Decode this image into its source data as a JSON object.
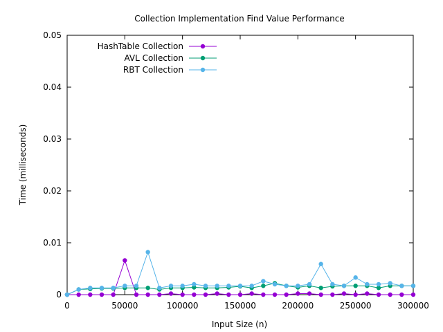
{
  "chart_data": {
    "type": "line",
    "title": "Collection Implementation Find Value Performance",
    "xlabel": "Input Size (n)",
    "ylabel": "Time (milliseconds)",
    "xlim": [
      0,
      300000
    ],
    "ylim": [
      0,
      0.05
    ],
    "x_ticks": [
      0,
      50000,
      100000,
      150000,
      200000,
      250000,
      300000
    ],
    "x_tick_labels": [
      "0",
      "50000",
      "100000",
      "150000",
      "200000",
      "250000",
      "300000"
    ],
    "y_ticks": [
      0,
      0.01,
      0.02,
      0.03,
      0.04,
      0.05
    ],
    "y_tick_labels": [
      "0",
      "0.01",
      "0.02",
      "0.03",
      "0.04",
      "0.05"
    ],
    "grid": false,
    "legend_position": "top-left",
    "x": [
      0,
      10000,
      20000,
      30000,
      40000,
      50000,
      60000,
      70000,
      80000,
      90000,
      100000,
      110000,
      120000,
      130000,
      140000,
      150000,
      160000,
      170000,
      180000,
      190000,
      200000,
      210000,
      220000,
      230000,
      240000,
      250000,
      260000,
      270000,
      280000,
      290000,
      300000
    ],
    "series": [
      {
        "name": "HashTable Collection",
        "color": "#9400d3",
        "values": [
          0,
          0,
          0,
          0,
          0,
          0.0066,
          0,
          0,
          0,
          0.0002,
          0,
          0,
          0,
          0.0002,
          0,
          0,
          0.0002,
          0,
          0,
          0,
          0.0002,
          0.0002,
          0,
          0,
          0.0002,
          0,
          0.0002,
          0,
          0,
          0,
          0
        ]
      },
      {
        "name": "AVL Collection",
        "color": "#009e73",
        "values": [
          0,
          0.001,
          0.0011,
          0.0012,
          0.0012,
          0.0013,
          0.0013,
          0.0013,
          0.001,
          0.0013,
          0.0013,
          0.0014,
          0.0013,
          0.0013,
          0.0014,
          0.0016,
          0.0013,
          0.0017,
          0.0022,
          0.0017,
          0.0014,
          0.0017,
          0.0013,
          0.0016,
          0.0017,
          0.0017,
          0.0017,
          0.0013,
          0.0017,
          0.0017,
          0.0017
        ]
      },
      {
        "name": "RBT Collection",
        "color": "#56b4e9",
        "values": [
          0,
          0.001,
          0.0013,
          0.0013,
          0.0013,
          0.0017,
          0.0017,
          0.0082,
          0.0013,
          0.0017,
          0.0017,
          0.002,
          0.0017,
          0.0017,
          0.0017,
          0.0017,
          0.0017,
          0.0026,
          0.002,
          0.0017,
          0.0017,
          0.002,
          0.0059,
          0.002,
          0.0017,
          0.0033,
          0.002,
          0.002,
          0.0022,
          0.0017,
          0.0017
        ]
      }
    ]
  }
}
